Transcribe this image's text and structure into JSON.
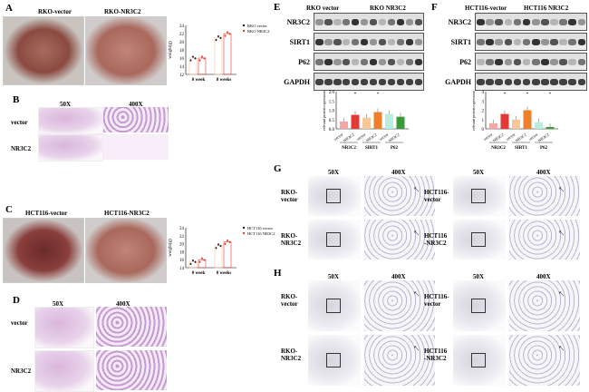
{
  "panels": {
    "A": {
      "label": "A",
      "titles": [
        "RKO-vector",
        "RKO-NR3C2"
      ]
    },
    "B": {
      "label": "B",
      "mags": [
        "50X",
        "400X"
      ],
      "rows": [
        "vector",
        "NR3C2"
      ]
    },
    "C": {
      "label": "C",
      "titles": [
        "HCT116-vector",
        "HCT116-NR3C2"
      ]
    },
    "D": {
      "label": "D",
      "mags": [
        "50X",
        "400X"
      ],
      "rows": [
        "vector",
        "NR3C2"
      ]
    },
    "E": {
      "label": "E",
      "groups": [
        "RKO vector",
        "RKO NR3C2"
      ],
      "proteins": [
        "NR3C2",
        "SIRT1",
        "P62",
        "GAPDH"
      ]
    },
    "F": {
      "label": "F",
      "groups": [
        "HCT116-vector",
        "HCT116 NR3C2"
      ],
      "proteins": [
        "NR3C2",
        "SIRT1",
        "P62",
        "GAPDH"
      ]
    },
    "G": {
      "label": "G",
      "mags": [
        "50X",
        "400X"
      ],
      "rows_left": [
        "RKO-\nvector",
        "RKO-\nNR3C2"
      ],
      "rows_right": [
        "HCT116-\nvector",
        "HCT116\n-NR3C2"
      ]
    },
    "H": {
      "label": "H",
      "mags": [
        "50X",
        "400X"
      ],
      "rows_left": [
        "RKO-\nvector",
        "RKO-\nNR3C2"
      ],
      "rows_right": [
        "HCT116-\nvector",
        "HCT116\n-NR3C2"
      ]
    }
  },
  "chart_data": [
    {
      "id": "A",
      "type": "bar",
      "categories": [
        "0 week",
        "8 weeks"
      ],
      "series": [
        {
          "name": "RKO vector",
          "values": [
            16,
            21
          ],
          "color": "#222222"
        },
        {
          "name": "RKO NR3C2",
          "values": [
            16,
            22
          ],
          "color": "#e53935"
        }
      ],
      "ylabel": "weight(g)",
      "ylim": [
        12,
        24
      ],
      "yticks": [
        12,
        14,
        16,
        18,
        20,
        22,
        24
      ],
      "legend": "top-right"
    },
    {
      "id": "C",
      "type": "bar",
      "categories": [
        "0 week",
        "8 weeks"
      ],
      "series": [
        {
          "name": "HCT116 vector",
          "values": [
            15.5,
            19.5
          ],
          "color": "#222222"
        },
        {
          "name": "HCT116 NR3C2",
          "values": [
            16,
            20.5
          ],
          "color": "#e53935"
        }
      ],
      "ylabel": "weight(g)",
      "ylim": [
        14,
        24
      ],
      "yticks": [
        14,
        16,
        18,
        20,
        22,
        24
      ],
      "legend": "top-right"
    },
    {
      "id": "E",
      "type": "bar",
      "categories": [
        "vector",
        "NR3C2",
        "vector",
        "NR3C2",
        "vector",
        "NR3C2"
      ],
      "groups": [
        "NR3C2",
        "SIRT1",
        "P62"
      ],
      "values": [
        0.4,
        0.75,
        0.6,
        0.9,
        0.8,
        0.65
      ],
      "colors": [
        "#f4a6a6",
        "#e53935",
        "#f5c89a",
        "#f07f2a",
        "#b9ede0",
        "#3a9a3a"
      ],
      "significance": [
        "",
        "*",
        "",
        "*",
        "",
        ""
      ],
      "ylabel": "relevant protein expression",
      "ylim": [
        0,
        2
      ],
      "yticks": [
        "0.0",
        "0.5",
        "1.0",
        "1.5",
        "2.0"
      ]
    },
    {
      "id": "F",
      "type": "bar",
      "categories": [
        "vector",
        "NR3C2",
        "vector",
        "NR3C2",
        "vector",
        "NR3C2"
      ],
      "groups": [
        "NR3C2",
        "SIRT1",
        "P62"
      ],
      "values": [
        0.6,
        1.6,
        1.0,
        2.0,
        0.7,
        0.2
      ],
      "colors": [
        "#f4a6a6",
        "#e53935",
        "#f5c89a",
        "#f07f2a",
        "#b9ede0",
        "#3a9a3a"
      ],
      "significance": [
        "",
        "*",
        "",
        "*",
        "",
        "*"
      ],
      "ylabel": "relevant protein expression",
      "ylim": [
        0,
        4
      ],
      "yticks": [
        "0",
        "1",
        "2",
        "3",
        "4"
      ]
    }
  ]
}
